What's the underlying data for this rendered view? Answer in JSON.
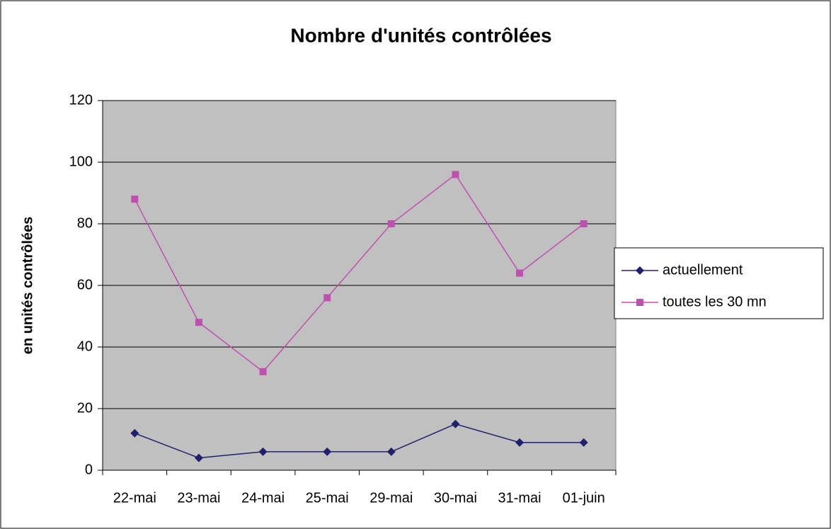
{
  "chart_data": {
    "type": "line",
    "title": "Nombre d'unités contrôlées",
    "y_label": "en unités contrôlées",
    "categories": [
      "22-mai",
      "23-mai",
      "24-mai",
      "25-mai",
      "29-mai",
      "30-mai",
      "31-mai",
      "01-juin"
    ],
    "series": [
      {
        "name": "actuellement",
        "color": "#20206e",
        "marker": "diamond",
        "values": [
          12,
          4,
          6,
          6,
          6,
          15,
          9,
          9
        ]
      },
      {
        "name": "toutes les 30 mn",
        "color": "#c050b0",
        "marker": "square",
        "values": [
          88,
          48,
          32,
          56,
          80,
          96,
          64,
          80
        ]
      }
    ],
    "ylim": [
      0,
      120
    ],
    "yticks": [
      0,
      20,
      40,
      60,
      80,
      100,
      120
    ],
    "grid": true,
    "legend": "right"
  }
}
